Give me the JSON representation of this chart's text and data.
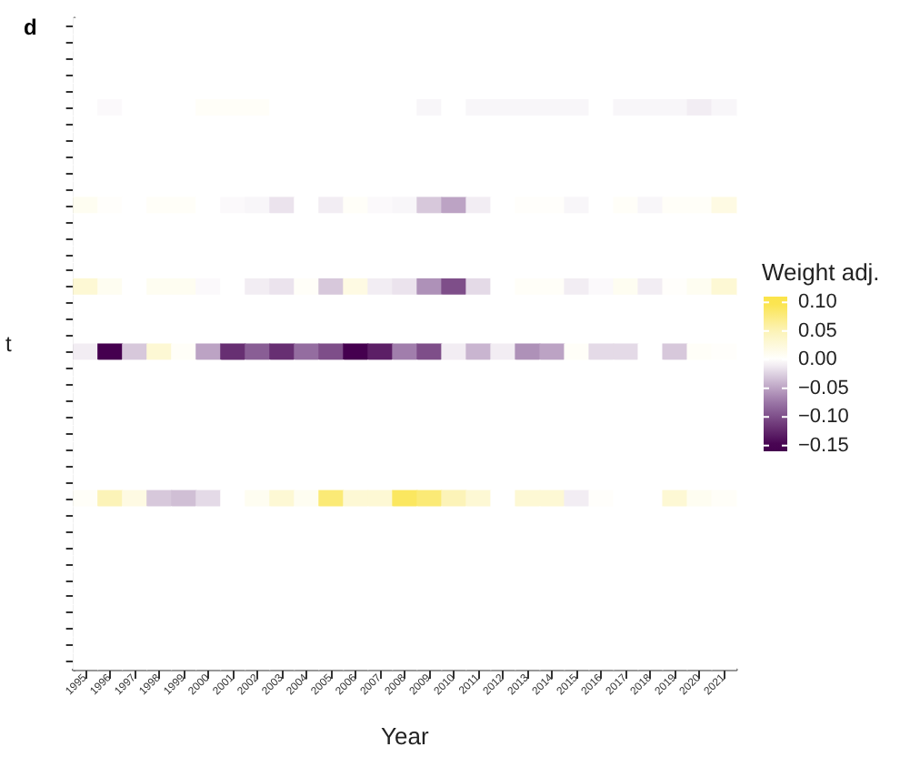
{
  "chart_data": {
    "type": "heatmap",
    "title": "d",
    "xlabel": "Year",
    "ylabel": "t",
    "clabel": "Weight adj.",
    "categories": [
      "1995",
      "1996",
      "1997",
      "1998",
      "1999",
      "2000",
      "2001",
      "2002",
      "2003",
      "2004",
      "2005",
      "2006",
      "2007",
      "2008",
      "2009",
      "2010",
      "2011",
      "2012",
      "2013",
      "2014",
      "2015",
      "2016",
      "2017",
      "2018",
      "2019",
      "2020",
      "2021"
    ],
    "y_categories": [
      null,
      null,
      null,
      null,
      null,
      null,
      null,
      null,
      null,
      null,
      null,
      null,
      null,
      null,
      null,
      null,
      null,
      null,
      null,
      null,
      null,
      null,
      null,
      null,
      null,
      null,
      null,
      null,
      null,
      null,
      null,
      null,
      null,
      null,
      null,
      null,
      null,
      null,
      null,
      null
    ],
    "cells": [
      [
        0,
        0,
        0,
        0,
        0,
        0,
        0,
        0,
        0,
        0,
        0,
        0,
        0,
        0,
        0,
        0,
        0,
        0,
        0,
        0,
        0,
        0,
        0,
        0,
        0,
        0,
        0
      ],
      [
        0,
        0,
        0,
        0,
        0,
        0,
        0,
        0,
        0,
        0,
        0,
        0,
        0,
        0,
        0,
        0,
        0,
        0,
        0,
        0,
        0,
        0,
        0,
        0,
        0,
        0,
        0
      ],
      [
        0,
        0,
        0,
        0,
        0,
        0,
        0,
        0,
        0,
        0,
        0,
        0,
        0,
        0,
        0,
        0,
        0,
        0,
        0,
        0,
        0,
        0,
        0,
        0,
        0,
        0,
        0
      ],
      [
        0,
        0,
        0,
        0,
        0,
        0,
        0,
        0,
        0,
        0,
        0,
        0,
        0,
        0,
        0,
        0,
        0,
        0,
        0,
        0,
        0,
        0,
        0,
        0,
        0,
        0,
        0
      ],
      [
        0,
        0,
        0,
        0,
        0,
        0,
        0,
        0,
        0,
        0,
        0,
        0,
        0,
        0,
        0,
        0,
        0,
        0,
        0,
        0,
        0,
        0,
        0,
        0,
        0,
        0,
        0
      ],
      [
        0,
        -0.003,
        0,
        0,
        0,
        0.005,
        0.005,
        0.005,
        0,
        0,
        0,
        0,
        0,
        0,
        -0.005,
        0,
        -0.005,
        -0.005,
        -0.005,
        -0.005,
        -0.005,
        0,
        -0.005,
        -0.005,
        -0.005,
        -0.01,
        -0.005
      ],
      [
        0,
        0,
        0,
        0,
        0,
        0,
        0,
        0,
        0,
        0,
        0,
        0,
        0,
        0,
        0,
        0,
        0,
        0,
        0,
        0,
        0,
        0,
        0,
        0,
        0,
        0,
        0
      ],
      [
        0,
        0,
        0,
        0,
        0,
        0,
        0,
        0,
        0,
        0,
        0,
        0,
        0,
        0,
        0,
        0,
        0,
        0,
        0,
        0,
        0,
        0,
        0,
        0,
        0,
        0,
        0
      ],
      [
        0,
        0,
        0,
        0,
        0,
        0,
        0,
        0,
        0,
        0,
        0,
        0,
        0,
        0,
        0,
        0,
        0,
        0,
        0,
        0,
        0,
        0,
        0,
        0,
        0,
        0,
        0
      ],
      [
        0,
        0,
        0,
        0,
        0,
        0,
        0,
        0,
        0,
        0,
        0,
        0,
        0,
        0,
        0,
        0,
        0,
        0,
        0,
        0,
        0,
        0,
        0,
        0,
        0,
        0,
        0
      ],
      [
        0,
        0,
        0,
        0,
        0,
        0,
        0,
        0,
        0,
        0,
        0,
        0,
        0,
        0,
        0,
        0,
        0,
        0,
        0,
        0,
        0,
        0,
        0,
        0,
        0,
        0,
        0
      ],
      [
        0.01,
        0.003,
        0,
        0.005,
        0.005,
        0,
        -0.003,
        -0.005,
        -0.015,
        0,
        -0.01,
        0.005,
        -0.003,
        -0.005,
        -0.03,
        -0.05,
        -0.01,
        0,
        0.003,
        0.003,
        -0.005,
        0,
        0.005,
        -0.005,
        0.005,
        0.005,
        0.02
      ],
      [
        0,
        0,
        0,
        0,
        0,
        0,
        0,
        0,
        0,
        0,
        0,
        0,
        0,
        0,
        0,
        0,
        0,
        0,
        0,
        0,
        0,
        0,
        0,
        0,
        0,
        0,
        0
      ],
      [
        0,
        0,
        0,
        0,
        0,
        0,
        0,
        0,
        0,
        0,
        0,
        0,
        0,
        0,
        0,
        0,
        0,
        0,
        0,
        0,
        0,
        0,
        0,
        0,
        0,
        0,
        0
      ],
      [
        0,
        0,
        0,
        0,
        0,
        0,
        0,
        0,
        0,
        0,
        0,
        0,
        0,
        0,
        0,
        0,
        0,
        0,
        0,
        0,
        0,
        0,
        0,
        0,
        0,
        0,
        0
      ],
      [
        0,
        0,
        0,
        0,
        0,
        0,
        0,
        0,
        0,
        0,
        0,
        0,
        0,
        0,
        0,
        0,
        0,
        0,
        0,
        0,
        0,
        0,
        0,
        0,
        0,
        0,
        0
      ],
      [
        0.03,
        0.01,
        0,
        0.01,
        0.01,
        -0.003,
        0,
        -0.01,
        -0.015,
        0.005,
        -0.03,
        0.02,
        -0.01,
        -0.015,
        -0.06,
        -0.1,
        -0.02,
        0,
        0.005,
        0.005,
        -0.01,
        -0.003,
        0.01,
        -0.01,
        0.003,
        0.01,
        0.03
      ],
      [
        0,
        0,
        0,
        0,
        0,
        0,
        0,
        0,
        0,
        0,
        0,
        0,
        0,
        0,
        0,
        0,
        0,
        0,
        0,
        0,
        0,
        0,
        0,
        0,
        0,
        0,
        0
      ],
      [
        0,
        0,
        0,
        0,
        0,
        0,
        0,
        0,
        0,
        0,
        0,
        0,
        0,
        0,
        0,
        0,
        0,
        0,
        0,
        0,
        0,
        0,
        0,
        0,
        0,
        0,
        0
      ],
      [
        0,
        0,
        0,
        0,
        0,
        0,
        0,
        0,
        0,
        0,
        0,
        0,
        0,
        0,
        0,
        0,
        0,
        0,
        0,
        0,
        0,
        0,
        0,
        0,
        0,
        0,
        0
      ],
      [
        -0.01,
        -0.15,
        -0.03,
        0.03,
        0.005,
        -0.05,
        -0.12,
        -0.09,
        -0.12,
        -0.08,
        -0.1,
        -0.15,
        -0.13,
        -0.07,
        -0.1,
        -0.01,
        -0.04,
        -0.01,
        -0.06,
        -0.05,
        0.005,
        -0.02,
        -0.02,
        0,
        -0.03,
        0.005,
        0.003
      ],
      [
        0,
        0,
        0,
        0,
        0,
        0,
        0,
        0,
        0,
        0,
        0,
        0,
        0,
        0,
        0,
        0,
        0,
        0,
        0,
        0,
        0,
        0,
        0,
        0,
        0,
        0,
        0
      ],
      [
        0,
        0,
        0,
        0,
        0,
        0,
        0,
        0,
        0,
        0,
        0,
        0,
        0,
        0,
        0,
        0,
        0,
        0,
        0,
        0,
        0,
        0,
        0,
        0,
        0,
        0,
        0
      ],
      [
        0,
        0,
        0,
        0,
        0,
        0,
        0,
        0,
        0,
        0,
        0,
        0,
        0,
        0,
        0,
        0,
        0,
        0,
        0,
        0,
        0,
        0,
        0,
        0,
        0,
        0,
        0
      ],
      [
        0,
        0,
        0,
        0,
        0,
        0,
        0,
        0,
        0,
        0,
        0,
        0,
        0,
        0,
        0,
        0,
        0,
        0,
        0,
        0,
        0,
        0,
        0,
        0,
        0,
        0,
        0
      ],
      [
        0,
        0,
        0,
        0,
        0,
        0,
        0,
        0,
        0,
        0,
        0,
        0,
        0,
        0,
        0,
        0,
        0,
        0,
        0,
        0,
        0,
        0,
        0,
        0,
        0,
        0,
        0
      ],
      [
        0,
        0,
        0,
        0,
        0,
        0,
        0,
        0,
        0,
        0,
        0,
        0,
        0,
        0,
        0,
        0,
        0,
        0,
        0,
        0,
        0,
        0,
        0,
        0,
        0,
        0,
        0
      ],
      [
        0,
        0,
        0,
        0,
        0,
        0,
        0,
        0,
        0,
        0,
        0,
        0,
        0,
        0,
        0,
        0,
        0,
        0,
        0,
        0,
        0,
        0,
        0,
        0,
        0,
        0,
        0
      ],
      [
        0,
        0,
        0,
        0,
        0,
        0,
        0,
        0,
        0,
        0,
        0,
        0,
        0,
        0,
        0,
        0,
        0,
        0,
        0,
        0,
        0,
        0,
        0,
        0,
        0,
        0,
        0
      ],
      [
        0.005,
        0.05,
        0.02,
        -0.03,
        -0.035,
        -0.02,
        0,
        0.01,
        0.03,
        0.01,
        0.08,
        0.03,
        0.03,
        0.09,
        0.08,
        0.05,
        0.03,
        0,
        0.03,
        0.03,
        -0.01,
        0.003,
        0,
        0,
        0.03,
        0.01,
        0.005
      ],
      [
        0,
        0,
        0,
        0,
        0,
        0,
        0,
        0,
        0,
        0,
        0,
        0,
        0,
        0,
        0,
        0,
        0,
        0,
        0,
        0,
        0,
        0,
        0,
        0,
        0,
        0,
        0
      ],
      [
        0,
        0,
        0,
        0,
        0,
        0,
        0,
        0,
        0,
        0,
        0,
        0,
        0,
        0,
        0,
        0,
        0,
        0,
        0,
        0,
        0,
        0,
        0,
        0,
        0,
        0,
        0
      ],
      [
        0,
        0,
        0,
        0,
        0,
        0,
        0,
        0,
        0,
        0,
        0,
        0,
        0,
        0,
        0,
        0,
        0,
        0,
        0,
        0,
        0,
        0,
        0,
        0,
        0,
        0,
        0
      ],
      [
        0,
        0,
        0,
        0,
        0,
        0,
        0,
        0,
        0,
        0,
        0,
        0,
        0,
        0,
        0,
        0,
        0,
        0,
        0,
        0,
        0,
        0,
        0,
        0,
        0,
        0,
        0
      ],
      [
        0,
        0,
        0,
        0,
        0,
        0,
        0,
        0,
        0,
        0,
        0,
        0,
        0,
        0,
        0,
        0,
        0,
        0,
        0,
        0,
        0,
        0,
        0,
        0,
        0,
        0,
        0
      ],
      [
        0,
        0,
        0,
        0,
        0,
        0,
        0,
        0,
        0,
        0,
        0,
        0,
        0,
        0,
        0,
        0,
        0,
        0,
        0,
        0,
        0,
        0,
        0,
        0,
        0,
        0,
        0
      ],
      [
        0,
        0,
        0,
        0,
        0,
        0,
        0,
        0,
        0,
        0,
        0,
        0,
        0,
        0,
        0,
        0,
        0,
        0,
        0,
        0,
        0,
        0,
        0,
        0,
        0,
        0,
        0
      ],
      [
        0,
        0,
        0,
        0,
        0,
        0,
        0,
        0,
        0,
        0,
        0,
        0,
        0,
        0,
        0,
        0,
        0,
        0,
        0,
        0,
        0,
        0,
        0,
        0,
        0,
        0,
        0
      ],
      [
        0,
        0,
        0,
        0,
        0,
        0,
        0,
        0,
        0,
        0,
        0,
        0,
        0,
        0,
        0,
        0,
        0,
        0,
        0,
        0,
        0,
        0,
        0,
        0,
        0,
        0,
        0
      ],
      [
        0,
        0,
        0,
        0,
        0,
        0,
        0,
        0,
        0,
        0,
        0,
        0,
        0,
        0,
        0,
        0,
        0,
        0,
        0,
        0,
        0,
        0,
        0,
        0,
        0,
        0,
        0
      ]
    ],
    "clim": [
      -0.16,
      0.11
    ],
    "cticks": [
      {
        "value": 0.1,
        "label": "0.10"
      },
      {
        "value": 0.05,
        "label": "0.05"
      },
      {
        "value": 0,
        "label": "0.00"
      },
      {
        "value": -0.05,
        "label": "−0.05"
      },
      {
        "value": -0.1,
        "label": "−0.10"
      },
      {
        "value": -0.15,
        "label": "−0.15"
      }
    ],
    "tick_labels": "x"
  }
}
